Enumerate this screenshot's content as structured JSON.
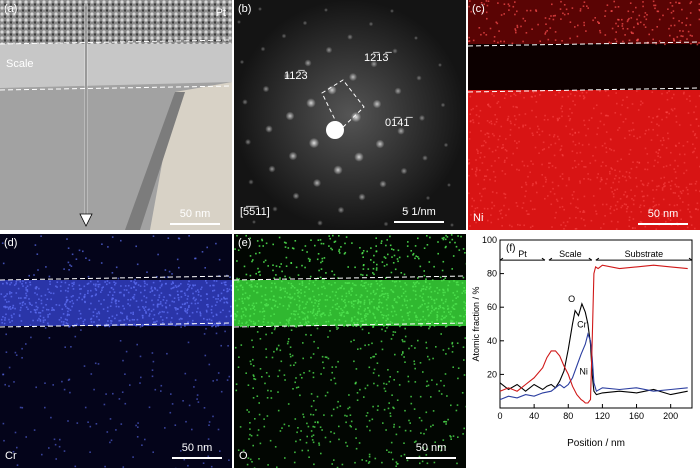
{
  "panels": {
    "a": {
      "label": "(a)",
      "layer_top": "Pt",
      "layer_mid": "Scale",
      "scalebar": "50 nm"
    },
    "b": {
      "label": "(b)",
      "zone_axis": "[5̅5̅11]",
      "scalebar": "5 1/nm",
      "spots": {
        "s1": "112̅3",
        "s2": "12̅13̅",
        "s3": "01̅41̅"
      }
    },
    "c": {
      "label": "(c)",
      "element": "Ni",
      "scalebar": "50 nm"
    },
    "d": {
      "label": "(d)",
      "element": "Cr",
      "scalebar": "50 nm"
    },
    "e": {
      "label": "(e)",
      "element": "O",
      "scalebar": "50 nm"
    },
    "f": {
      "label": "(f)"
    }
  },
  "colors": {
    "O": "#000000",
    "Cr": "#2b3ea0",
    "Ni": "#d01818"
  },
  "chart_data": {
    "type": "line",
    "xlabel": "Position / nm",
    "ylabel": "Atomic fraction / %",
    "xlim": [
      0,
      225
    ],
    "ylim": [
      0,
      100
    ],
    "xticks": [
      0,
      40,
      80,
      120,
      160,
      200
    ],
    "yticks": [
      20,
      40,
      60,
      80,
      100
    ],
    "regions": [
      {
        "name": "Pt",
        "start": 0,
        "end": 55
      },
      {
        "name": "Scale",
        "start": 55,
        "end": 110
      },
      {
        "name": "Substrate",
        "start": 110,
        "end": 225
      }
    ],
    "series": [
      {
        "name": "O",
        "color": "#000000",
        "x": [
          0,
          10,
          20,
          30,
          40,
          50,
          55,
          60,
          65,
          70,
          75,
          80,
          85,
          88,
          92,
          96,
          100,
          103,
          106,
          108,
          110,
          113,
          120,
          140,
          160,
          180,
          200,
          220
        ],
        "y": [
          15,
          11,
          14,
          10,
          14,
          11,
          13,
          14,
          12,
          16,
          22,
          35,
          50,
          58,
          55,
          62,
          57,
          50,
          38,
          20,
          10,
          8,
          9,
          10,
          9,
          11,
          8,
          10
        ]
      },
      {
        "name": "Cr",
        "color": "#2b3ea0",
        "x": [
          0,
          10,
          20,
          30,
          40,
          50,
          60,
          65,
          70,
          75,
          80,
          85,
          90,
          95,
          100,
          103,
          106,
          108,
          110,
          113,
          120,
          140,
          160,
          180,
          200,
          220
        ],
        "y": [
          5,
          7,
          6,
          8,
          7,
          9,
          10,
          12,
          14,
          12,
          14,
          18,
          25,
          32,
          38,
          44,
          40,
          30,
          15,
          10,
          12,
          11,
          12,
          10,
          11,
          12
        ]
      },
      {
        "name": "Ni",
        "color": "#d01818",
        "x": [
          0,
          10,
          20,
          30,
          40,
          50,
          55,
          60,
          65,
          70,
          75,
          80,
          85,
          90,
          95,
          98,
          100,
          103,
          106,
          108,
          110,
          112,
          115,
          120,
          140,
          160,
          180,
          200,
          220
        ],
        "y": [
          10,
          12,
          10,
          14,
          18,
          24,
          30,
          34,
          34,
          31,
          25,
          20,
          13,
          8,
          5,
          4,
          3,
          3,
          5,
          40,
          80,
          84,
          83,
          85,
          83,
          84,
          85,
          84,
          83
        ]
      }
    ],
    "annotations": [
      {
        "text": "O",
        "x": 84,
        "y": 63
      },
      {
        "text": "Cr",
        "x": 96,
        "y": 48
      },
      {
        "text": "Ni",
        "x": 98,
        "y": 20
      }
    ],
    "legend": "none",
    "grid": false
  }
}
